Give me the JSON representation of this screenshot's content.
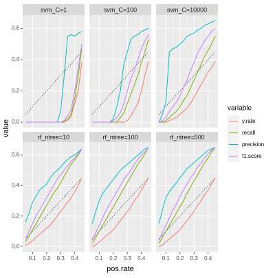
{
  "chart_data": {
    "type": "line",
    "xlabel": "pos.rate",
    "ylabel": "value",
    "legend_title": "variable",
    "x": [
      0.05,
      0.075,
      0.1,
      0.125,
      0.15,
      0.175,
      0.2,
      0.225,
      0.25,
      0.275,
      0.3,
      0.325,
      0.35,
      0.375,
      0.4,
      0.425,
      0.45
    ],
    "xlim": [
      0.03,
      0.47
    ],
    "ylim": [
      -0.035,
      0.685
    ],
    "xticks": [
      0.1,
      0.2,
      0.3,
      0.4
    ],
    "yticks": [
      {
        "value": 0,
        "label": "0.0"
      },
      0.2,
      0.4,
      0.6
    ],
    "grid": true,
    "reference": {
      "x": [
        0.05,
        0.45
      ],
      "values": [
        0.05,
        0.45
      ],
      "color": "#555555",
      "style": "dotted"
    },
    "facets": [
      {
        "title": "svm_C=1",
        "series": [
          {
            "name": "y.rate",
            "color": "#F8766D",
            "values": [
              0,
              0,
              0,
              0,
              0,
              0,
              0,
              0,
              0,
              0,
              0,
              0,
              0.01,
              0.04,
              0.12,
              0.2,
              0.38
            ]
          },
          {
            "name": "recall",
            "color": "#7CAE00",
            "values": [
              0,
              0,
              0,
              0,
              0,
              0,
              0,
              0,
              0,
              0,
              0,
              0.005,
              0.02,
              0.05,
              0.15,
              0.3,
              0.47
            ]
          },
          {
            "name": "precision",
            "color": "#00BFC4",
            "values": [
              0,
              0,
              0,
              0,
              0,
              0,
              0,
              0,
              0,
              0,
              0.07,
              0.3,
              0.55,
              0.56,
              0.55,
              0.57,
              0.58
            ]
          },
          {
            "name": "f1.score",
            "color": "#C77CFF",
            "values": [
              0,
              0,
              0,
              0,
              0,
              0,
              0,
              0,
              0,
              0,
              0,
              0.01,
              0.04,
              0.08,
              0.2,
              0.35,
              0.5
            ]
          }
        ]
      },
      {
        "title": "svm_C=100",
        "series": [
          {
            "name": "y.rate",
            "color": "#F8766D",
            "values": [
              0,
              0,
              0,
              0,
              0,
              0,
              0,
              0,
              0,
              0,
              0.01,
              0.04,
              0.08,
              0.12,
              0.2,
              0.3,
              0.39
            ]
          },
          {
            "name": "recall",
            "color": "#7CAE00",
            "values": [
              0,
              0,
              0,
              0,
              0,
              0,
              0,
              0,
              0.03,
              0.06,
              0.12,
              0.18,
              0.24,
              0.3,
              0.38,
              0.45,
              0.53
            ]
          },
          {
            "name": "precision",
            "color": "#00BFC4",
            "values": [
              0,
              0,
              0,
              0,
              0,
              0,
              0.02,
              0.1,
              0.2,
              0.37,
              0.45,
              0.53,
              0.55,
              0.56,
              0.58,
              0.59,
              0.6
            ]
          },
          {
            "name": "f1.score",
            "color": "#C77CFF",
            "values": [
              0,
              0,
              0,
              0,
              0,
              0,
              0.01,
              0.03,
              0.06,
              0.12,
              0.2,
              0.28,
              0.33,
              0.4,
              0.47,
              0.52,
              0.56
            ]
          }
        ]
      },
      {
        "title": "svm_C=10000",
        "series": [
          {
            "name": "y.rate",
            "color": "#F8766D",
            "values": [
              0,
              0,
              0,
              0.01,
              0.02,
              0.03,
              0.05,
              0.07,
              0.09,
              0.12,
              0.16,
              0.2,
              0.24,
              0.28,
              0.32,
              0.35,
              0.39
            ]
          },
          {
            "name": "recall",
            "color": "#7CAE00",
            "values": [
              0,
              0,
              0.01,
              0.03,
              0.05,
              0.07,
              0.1,
              0.14,
              0.17,
              0.22,
              0.27,
              0.32,
              0.37,
              0.42,
              0.46,
              0.5,
              0.55
            ]
          },
          {
            "name": "precision",
            "color": "#00BFC4",
            "values": [
              0,
              0.05,
              0.13,
              0.45,
              0.47,
              0.48,
              0.5,
              0.52,
              0.55,
              0.56,
              0.57,
              0.59,
              0.6,
              0.62,
              0.63,
              0.64,
              0.65
            ]
          },
          {
            "name": "f1.score",
            "color": "#C77CFF",
            "values": [
              0,
              0.01,
              0.03,
              0.07,
              0.1,
              0.13,
              0.17,
              0.22,
              0.27,
              0.33,
              0.38,
              0.44,
              0.48,
              0.52,
              0.55,
              0.58,
              0.6
            ]
          }
        ]
      },
      {
        "title": "rf_ntree=10",
        "series": [
          {
            "name": "y.rate",
            "color": "#F8766D",
            "values": [
              0.01,
              0.02,
              0.04,
              0.06,
              0.08,
              0.1,
              0.12,
              0.14,
              0.17,
              0.2,
              0.23,
              0.26,
              0.29,
              0.32,
              0.36,
              0.4,
              0.45
            ]
          },
          {
            "name": "recall",
            "color": "#7CAE00",
            "values": [
              0.03,
              0.07,
              0.11,
              0.15,
              0.19,
              0.23,
              0.27,
              0.31,
              0.35,
              0.38,
              0.42,
              0.46,
              0.5,
              0.54,
              0.57,
              0.6,
              0.64
            ]
          },
          {
            "name": "precision",
            "color": "#00BFC4",
            "values": [
              0.16,
              0.22,
              0.29,
              0.33,
              0.37,
              0.39,
              0.41,
              0.45,
              0.48,
              0.5,
              0.52,
              0.55,
              0.57,
              0.59,
              0.6,
              0.62,
              0.64
            ]
          },
          {
            "name": "f1.score",
            "color": "#C77CFF",
            "values": [
              0.05,
              0.1,
              0.15,
              0.2,
              0.24,
              0.28,
              0.32,
              0.36,
              0.4,
              0.44,
              0.47,
              0.5,
              0.53,
              0.56,
              0.58,
              0.61,
              0.64
            ]
          }
        ]
      },
      {
        "title": "rf_ntree=100",
        "series": [
          {
            "name": "y.rate",
            "color": "#F8766D",
            "values": [
              0,
              0.01,
              0.03,
              0.05,
              0.07,
              0.09,
              0.11,
              0.14,
              0.17,
              0.2,
              0.23,
              0.26,
              0.3,
              0.33,
              0.37,
              0.41,
              0.45
            ]
          },
          {
            "name": "recall",
            "color": "#7CAE00",
            "values": [
              0.02,
              0.06,
              0.1,
              0.14,
              0.18,
              0.22,
              0.26,
              0.3,
              0.34,
              0.38,
              0.42,
              0.46,
              0.5,
              0.54,
              0.57,
              0.61,
              0.65
            ]
          },
          {
            "name": "precision",
            "color": "#00BFC4",
            "values": [
              0.15,
              0.23,
              0.3,
              0.35,
              0.38,
              0.41,
              0.44,
              0.47,
              0.5,
              0.52,
              0.54,
              0.56,
              0.58,
              0.6,
              0.62,
              0.64,
              0.65
            ]
          },
          {
            "name": "f1.score",
            "color": "#C77CFF",
            "values": [
              0.04,
              0.09,
              0.14,
              0.19,
              0.24,
              0.28,
              0.32,
              0.36,
              0.4,
              0.44,
              0.47,
              0.5,
              0.54,
              0.57,
              0.6,
              0.62,
              0.65
            ]
          }
        ]
      },
      {
        "title": "rf_ntree=500",
        "series": [
          {
            "name": "y.rate",
            "color": "#F8766D",
            "values": [
              0,
              0.01,
              0.03,
              0.05,
              0.07,
              0.09,
              0.11,
              0.14,
              0.17,
              0.2,
              0.23,
              0.27,
              0.3,
              0.34,
              0.37,
              0.41,
              0.45
            ]
          },
          {
            "name": "recall",
            "color": "#7CAE00",
            "values": [
              0.02,
              0.06,
              0.1,
              0.14,
              0.18,
              0.22,
              0.26,
              0.3,
              0.35,
              0.39,
              0.43,
              0.47,
              0.51,
              0.55,
              0.58,
              0.62,
              0.65
            ]
          },
          {
            "name": "precision",
            "color": "#00BFC4",
            "values": [
              0.15,
              0.24,
              0.32,
              0.36,
              0.39,
              0.42,
              0.45,
              0.48,
              0.51,
              0.53,
              0.55,
              0.57,
              0.59,
              0.61,
              0.63,
              0.64,
              0.65
            ]
          },
          {
            "name": "f1.score",
            "color": "#C77CFF",
            "values": [
              0.04,
              0.09,
              0.14,
              0.19,
              0.24,
              0.28,
              0.33,
              0.37,
              0.41,
              0.45,
              0.48,
              0.52,
              0.55,
              0.58,
              0.61,
              0.63,
              0.65
            ]
          }
        ]
      }
    ]
  }
}
